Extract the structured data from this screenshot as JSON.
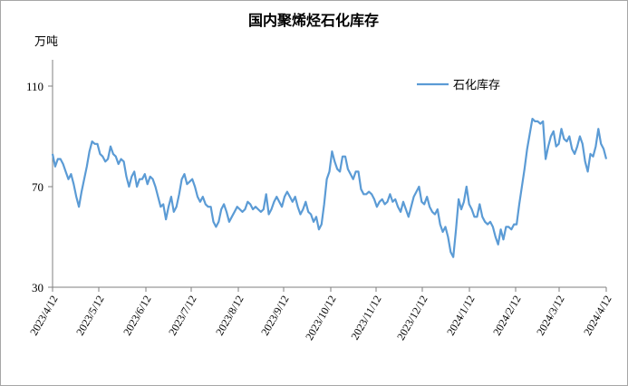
{
  "chart_data": {
    "type": "line",
    "title": "国内聚烯烃石化库存",
    "ylabel": "万吨",
    "xlabel": "",
    "ylim": [
      30,
      110
    ],
    "yticks": [
      30,
      70,
      110
    ],
    "grid": false,
    "legend_position": "top-right",
    "x_tick_labels": [
      "2023/4/12",
      "2023/5/12",
      "2023/6/12",
      "2023/7/12",
      "2023/8/12",
      "2023/9/12",
      "2023/10/12",
      "2023/11/12",
      "2023/12/12",
      "2024/1/12",
      "2024/2/12",
      "2024/3/12",
      "2024/4/12"
    ],
    "series": [
      {
        "name": "石化库存",
        "color": "#5b9bd5",
        "values": [
          83,
          78,
          81,
          81,
          79,
          76,
          73,
          75,
          71,
          66,
          62,
          68,
          73,
          78,
          84,
          88,
          87,
          87,
          83,
          82,
          80,
          81,
          86,
          83,
          82,
          79,
          81,
          80,
          74,
          70,
          74,
          76,
          70,
          73,
          73,
          75,
          71,
          74,
          73,
          70,
          66,
          62,
          63,
          57,
          62,
          66,
          60,
          62,
          67,
          73,
          75,
          71,
          72,
          73,
          70,
          66,
          64,
          66,
          63,
          62,
          62,
          56,
          54,
          56,
          61,
          63,
          60,
          56,
          58,
          60,
          62,
          61,
          60,
          61,
          64,
          63,
          61,
          62,
          61,
          60,
          61,
          67,
          59,
          61,
          64,
          66,
          64,
          62,
          66,
          68,
          66,
          64,
          66,
          62,
          59,
          61,
          64,
          60,
          59,
          56,
          58,
          53,
          55,
          63,
          73,
          76,
          84,
          80,
          77,
          76,
          82,
          82,
          77,
          75,
          73,
          76,
          76,
          69,
          67,
          67,
          68,
          67,
          65,
          62,
          64,
          65,
          63,
          64,
          67,
          64,
          65,
          62,
          60,
          64,
          61,
          58,
          62,
          66,
          68,
          70,
          64,
          63,
          66,
          62,
          60,
          59,
          61,
          55,
          52,
          54,
          50,
          44,
          42,
          53,
          65,
          61,
          64,
          70,
          63,
          61,
          58,
          58,
          63,
          58,
          56,
          55,
          56,
          54,
          50,
          47,
          53,
          49,
          54,
          54,
          53,
          55,
          55,
          63,
          70,
          77,
          85,
          91,
          97,
          96,
          96,
          95,
          96,
          81,
          86,
          90,
          92,
          86,
          87,
          93,
          89,
          88,
          90,
          85,
          83,
          86,
          90,
          87,
          80,
          76,
          83,
          82,
          86,
          93,
          87,
          85,
          81
        ]
      }
    ]
  }
}
